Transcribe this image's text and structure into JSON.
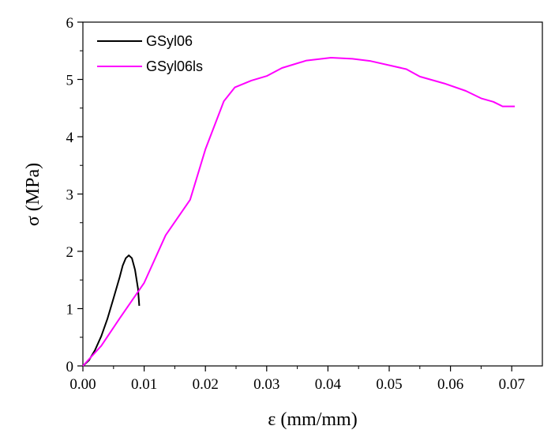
{
  "chart_data": {
    "type": "line",
    "title": "",
    "xlabel": "ε (mm/mm)",
    "ylabel": "σ (MPa)",
    "xlim": [
      0,
      0.075
    ],
    "ylim": [
      0,
      6
    ],
    "x_ticks": [
      0,
      0.01,
      0.02,
      0.03,
      0.04,
      0.05,
      0.06,
      0.07
    ],
    "x_tick_labels": [
      "0.00",
      "0.01",
      "0.02",
      "0.03",
      "0.04",
      "0.05",
      "0.06",
      "0.07"
    ],
    "y_ticks": [
      0,
      1,
      2,
      3,
      4,
      5,
      6
    ],
    "y_tick_labels": [
      "0",
      "1",
      "2",
      "3",
      "4",
      "5",
      "6"
    ],
    "grid": false,
    "legend_position": "top-left",
    "series": [
      {
        "name": "GSyl06",
        "color": "#000000",
        "points": [
          [
            0,
            0
          ],
          [
            0.001,
            0.1
          ],
          [
            0.002,
            0.28
          ],
          [
            0.003,
            0.52
          ],
          [
            0.004,
            0.82
          ],
          [
            0.005,
            1.18
          ],
          [
            0.006,
            1.55
          ],
          [
            0.0065,
            1.75
          ],
          [
            0.007,
            1.88
          ],
          [
            0.0075,
            1.93
          ],
          [
            0.008,
            1.88
          ],
          [
            0.0085,
            1.68
          ],
          [
            0.009,
            1.35
          ],
          [
            0.0092,
            1.05
          ]
        ]
      },
      {
        "name": "GSyl06ls",
        "color": "#ff00ff",
        "points": [
          [
            0,
            0
          ],
          [
            0.003,
            0.35
          ],
          [
            0.006,
            0.83
          ],
          [
            0.01,
            1.45
          ],
          [
            0.0135,
            2.28
          ],
          [
            0.0175,
            2.9
          ],
          [
            0.02,
            3.78
          ],
          [
            0.023,
            4.62
          ],
          [
            0.0248,
            4.86
          ],
          [
            0.0275,
            4.98
          ],
          [
            0.03,
            5.06
          ],
          [
            0.0325,
            5.2
          ],
          [
            0.0365,
            5.33
          ],
          [
            0.0405,
            5.38
          ],
          [
            0.044,
            5.36
          ],
          [
            0.047,
            5.32
          ],
          [
            0.0528,
            5.18
          ],
          [
            0.055,
            5.05
          ],
          [
            0.059,
            4.93
          ],
          [
            0.0625,
            4.8
          ],
          [
            0.065,
            4.67
          ],
          [
            0.067,
            4.61
          ],
          [
            0.0685,
            4.53
          ],
          [
            0.0705,
            4.53
          ]
        ]
      }
    ]
  }
}
